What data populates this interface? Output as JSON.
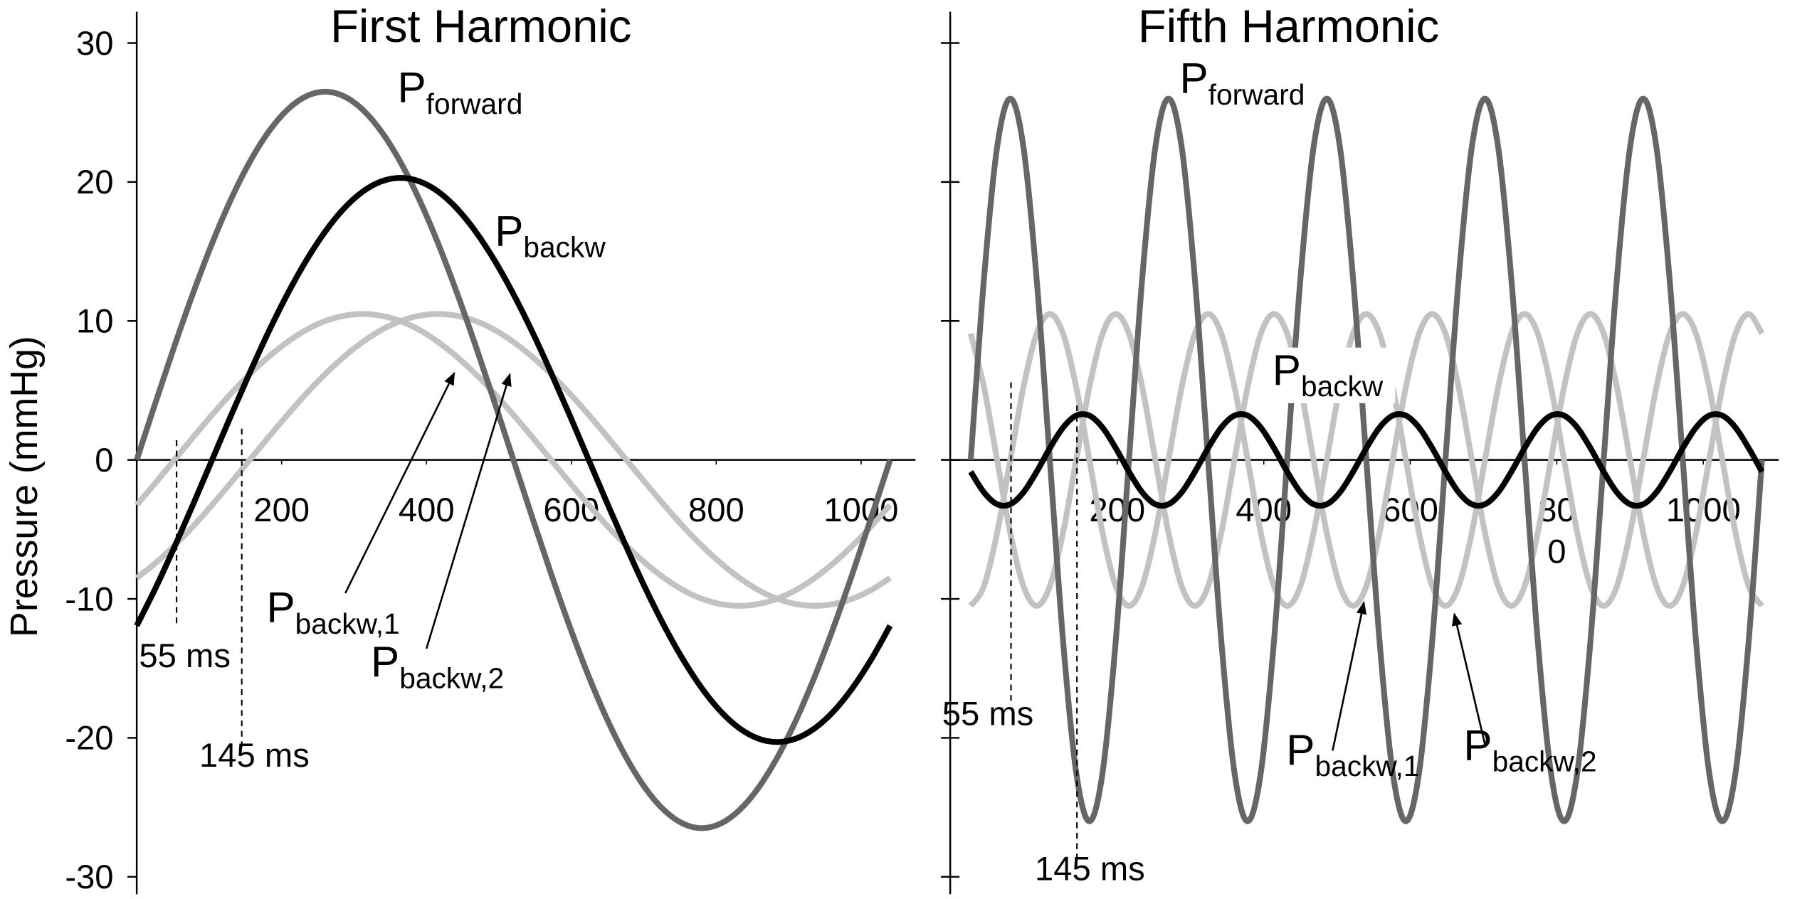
{
  "chart_data": [
    {
      "type": "line",
      "title": "First Harmonic",
      "y_label": "Pressure (mmHg)",
      "x": [
        0,
        26,
        52,
        78,
        104,
        130,
        156,
        182,
        208,
        234,
        260,
        286,
        312,
        338,
        364,
        390,
        416,
        442,
        468,
        494,
        520,
        546,
        572,
        598,
        624,
        650,
        676,
        702,
        728,
        754,
        780,
        806,
        832,
        858,
        884,
        910,
        936,
        962,
        988,
        1014,
        1040
      ],
      "series": [
        {
          "name": "Pforward",
          "color": "#666666",
          "values": [
            0,
            4.14,
            8.19,
            12.03,
            15.58,
            18.74,
            21.44,
            23.61,
            25.2,
            26.17,
            26.5,
            26.17,
            25.2,
            23.61,
            21.44,
            18.74,
            15.58,
            12.03,
            8.19,
            4.14,
            0,
            -4.14,
            -8.19,
            -12.03,
            -15.58,
            -18.74,
            -21.44,
            -23.61,
            -25.2,
            -26.17,
            -26.5,
            -26.17,
            -25.2,
            -23.61,
            -21.44,
            -18.74,
            -15.58,
            -12.03,
            -8.19,
            -4.14,
            0
          ]
        },
        {
          "name": "Pbackw",
          "color": "#000000",
          "values": [
            -11.93,
            -9.22,
            -6.27,
            -3.18,
            0,
            3.18,
            6.27,
            9.22,
            11.93,
            14.35,
            16.42,
            18.09,
            19.31,
            20.05,
            20.3,
            20.05,
            19.31,
            18.09,
            16.42,
            14.35,
            11.93,
            9.22,
            6.27,
            3.18,
            0,
            -3.18,
            -6.27,
            -9.22,
            -11.93,
            -14.35,
            -16.42,
            -18.09,
            -19.31,
            -20.05,
            -20.3,
            -20.05,
            -19.31,
            -18.09,
            -16.42,
            -14.35,
            -11.93
          ]
        },
        {
          "name": "Pbackw,1",
          "color": "#c2c2c2",
          "values": [
            -3.24,
            -1.64,
            0,
            1.64,
            3.24,
            4.77,
            6.17,
            7.42,
            8.49,
            9.36,
            9.99,
            10.37,
            10.5,
            10.37,
            9.99,
            9.36,
            8.49,
            7.42,
            6.17,
            4.77,
            3.24,
            1.64,
            0,
            -1.64,
            -3.24,
            -4.77,
            -6.17,
            -7.42,
            -8.49,
            -9.36,
            -9.99,
            -10.37,
            -10.5,
            -10.37,
            -9.99,
            -9.36,
            -8.49,
            -7.42,
            -6.17,
            -4.77,
            -3.24
          ]
        },
        {
          "name": "Pbackw,2",
          "color": "#c2c2c2",
          "values": [
            -8.49,
            -7.42,
            -6.17,
            -4.77,
            -3.24,
            -1.64,
            0,
            1.64,
            3.24,
            4.77,
            6.17,
            7.42,
            8.49,
            9.36,
            9.99,
            10.37,
            10.5,
            10.37,
            9.99,
            9.36,
            8.49,
            7.42,
            6.17,
            4.77,
            3.24,
            1.64,
            0,
            -1.64,
            -3.24,
            -4.77,
            -6.17,
            -7.42,
            -8.49,
            -9.36,
            -9.99,
            -10.37,
            -10.5,
            -10.37,
            -9.99,
            -9.36,
            -8.49
          ]
        }
      ],
      "xlim": [
        0,
        1075
      ],
      "ylim": [
        -30,
        30
      ],
      "xticks": [
        200,
        400,
        600,
        800,
        1000
      ],
      "yticks": [
        -30,
        -20,
        -10,
        0,
        10,
        20,
        30
      ],
      "annotations": [
        {
          "text": "55 ms",
          "x": 55
        },
        {
          "text": "145 ms",
          "x": 145
        }
      ]
    },
    {
      "type": "line",
      "title": "Fifth Harmonic",
      "x": [
        0,
        18,
        36,
        54,
        72,
        90,
        108,
        126,
        144,
        162,
        180,
        198,
        216,
        234,
        252,
        270,
        288,
        306,
        324,
        342,
        360,
        378,
        396,
        414,
        432,
        450,
        468,
        486,
        504,
        522,
        540,
        558,
        576,
        594,
        612,
        630,
        648,
        666,
        684,
        702,
        720,
        738,
        756,
        774,
        792,
        810,
        828,
        846,
        864,
        882,
        900,
        918,
        936,
        954,
        972,
        990,
        1008,
        1026,
        1044,
        1062,
        1080
      ],
      "series": [
        {
          "name": "Pforward",
          "color": "#666666",
          "values": [
            0,
            13,
            22.5,
            26,
            22.5,
            13,
            0,
            -13,
            -22.5,
            -26,
            -22.5,
            -13,
            0,
            13,
            22.5,
            26,
            22.5,
            13,
            0,
            -13,
            -22.5,
            -26,
            -22.5,
            -13,
            0,
            13,
            22.5,
            26,
            22.5,
            13,
            0,
            -13,
            -22.5,
            -26,
            -22.5,
            -13,
            0,
            13,
            22.5,
            26,
            22.5,
            13,
            0,
            -13,
            -22.5,
            -26,
            -22.5,
            -13,
            0,
            13,
            22.5,
            26,
            22.5,
            13,
            0,
            -13,
            -22.5,
            -26,
            -22.5,
            -13,
            0
          ]
        },
        {
          "name": "Pbackw",
          "color": "#000000",
          "values": [
            -0.85,
            -2.33,
            -3.19,
            -3.19,
            -2.33,
            -0.85,
            0.85,
            2.33,
            3.19,
            3.19,
            2.33,
            0.85,
            -0.85,
            -2.33,
            -3.19,
            -3.19,
            -2.33,
            -0.85,
            0.85,
            2.33,
            3.19,
            3.19,
            2.33,
            0.85,
            -0.85,
            -2.33,
            -3.19,
            -3.19,
            -2.33,
            -0.85,
            0.85,
            2.33,
            3.19,
            3.19,
            2.33,
            0.85,
            -0.85,
            -2.33,
            -3.19,
            -3.19,
            -2.33,
            -0.85,
            0.85,
            2.33,
            3.19,
            3.19,
            2.33,
            0.85,
            -0.85,
            -2.33,
            -3.19,
            -3.19,
            -2.33,
            -0.85,
            0.85,
            2.33,
            3.19,
            3.19,
            2.33,
            0.85,
            -0.85
          ]
        },
        {
          "name": "Pbackw,1",
          "color": "#c2c2c2",
          "values": [
            -10.5,
            -9.09,
            -5.25,
            0,
            5.25,
            9.09,
            10.5,
            9.09,
            5.25,
            0,
            -5.25,
            -9.09,
            -10.5,
            -9.09,
            -5.25,
            0,
            5.25,
            9.09,
            10.5,
            9.09,
            5.25,
            0,
            -5.25,
            -9.09,
            -10.5,
            -9.09,
            -5.25,
            0,
            5.25,
            9.09,
            10.5,
            9.09,
            5.25,
            0,
            -5.25,
            -9.09,
            -10.5,
            -9.09,
            -5.25,
            0,
            5.25,
            9.09,
            10.5,
            9.09,
            5.25,
            0,
            -5.25,
            -9.09,
            -10.5,
            -9.09,
            -5.25,
            0,
            5.25,
            9.09,
            10.5,
            9.09,
            5.25,
            0,
            -5.25,
            -9.09,
            -10.5
          ]
        },
        {
          "name": "Pbackw,2",
          "color": "#c2c2c2",
          "values": [
            9.09,
            5.25,
            0,
            -5.25,
            -9.09,
            -10.5,
            -9.09,
            -5.25,
            0,
            5.25,
            9.09,
            10.5,
            9.09,
            5.25,
            0,
            -5.25,
            -9.09,
            -10.5,
            -9.09,
            -5.25,
            0,
            5.25,
            9.09,
            10.5,
            9.09,
            5.25,
            0,
            -5.25,
            -9.09,
            -10.5,
            -9.09,
            -5.25,
            0,
            5.25,
            9.09,
            10.5,
            9.09,
            5.25,
            0,
            -5.25,
            -9.09,
            -10.5,
            -9.09,
            -5.25,
            0,
            5.25,
            9.09,
            10.5,
            9.09,
            5.25,
            0,
            -5.25,
            -9.09,
            -10.5,
            -9.09,
            -5.25,
            0,
            5.25,
            9.09,
            10.5,
            9.09
          ]
        }
      ],
      "xlim": [
        -28,
        1103
      ],
      "ylim": [
        -30,
        30
      ],
      "xticks": [
        200,
        400,
        600,
        {
          "value": 800,
          "label": "80\n0"
        },
        1000
      ],
      "yticks": [
        -30,
        -20,
        -10,
        0,
        10,
        20,
        30
      ],
      "annotations": [
        {
          "text": "55 ms",
          "x": 55
        },
        {
          "text": "145 ms",
          "x": 145
        }
      ]
    }
  ]
}
